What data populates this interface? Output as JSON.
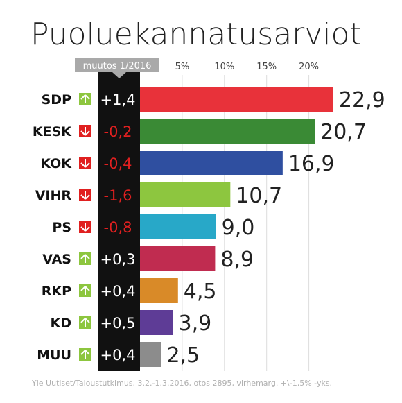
{
  "chart_data": {
    "type": "bar",
    "title": "Puoluekannatusarviot",
    "change_header": "muutos 1/2016",
    "x_ticks": [
      "5%",
      "10%",
      "15%",
      "20%"
    ],
    "x_tick_values": [
      5,
      10,
      15,
      20
    ],
    "xlim": [
      0,
      23.5
    ],
    "grid": true,
    "categories": [
      "SDP",
      "KESK",
      "KOK",
      "VIHR",
      "PS",
      "VAS",
      "RKP",
      "KD",
      "MUU"
    ],
    "values": [
      22.9,
      20.7,
      16.9,
      10.7,
      9.0,
      8.9,
      4.5,
      3.9,
      2.5
    ],
    "value_labels": [
      "22,9",
      "20,7",
      "16,9",
      "10,7",
      "9,0",
      "8,9",
      "4,5",
      "3,9",
      "2,5"
    ],
    "changes": [
      1.4,
      -0.2,
      -0.4,
      -1.6,
      -0.8,
      0.3,
      0.4,
      0.5,
      0.4
    ],
    "change_labels": [
      "+1,4",
      "-0,2",
      "-0,4",
      "-1,6",
      "-0,8",
      "+0,3",
      "+0,4",
      "+0,5",
      "+0,4"
    ],
    "colors": [
      "#e8323a",
      "#3a8a35",
      "#2f4fa0",
      "#8dc63f",
      "#28a8c8",
      "#c02c50",
      "#d98a28",
      "#5e3c96",
      "#8c8c8c"
    ],
    "up_color": "#8dc63f",
    "down_color": "#e02020",
    "source": "Yle Uutiset/Taloustutkimus, 3.2.-1.3.2016, otos 2895, virhemarg. +\\-1,5% -yks."
  }
}
